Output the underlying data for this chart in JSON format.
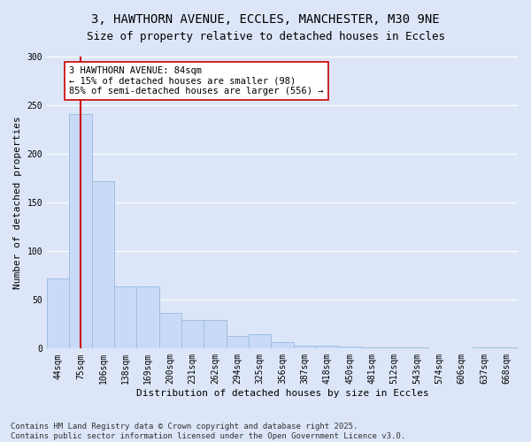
{
  "title_line1": "3, HAWTHORN AVENUE, ECCLES, MANCHESTER, M30 9NE",
  "title_line2": "Size of property relative to detached houses in Eccles",
  "xlabel": "Distribution of detached houses by size in Eccles",
  "ylabel": "Number of detached properties",
  "categories": [
    "44sqm",
    "75sqm",
    "106sqm",
    "138sqm",
    "169sqm",
    "200sqm",
    "231sqm",
    "262sqm",
    "294sqm",
    "325sqm",
    "356sqm",
    "387sqm",
    "418sqm",
    "450sqm",
    "481sqm",
    "512sqm",
    "543sqm",
    "574sqm",
    "606sqm",
    "637sqm",
    "668sqm"
  ],
  "values": [
    72,
    241,
    172,
    64,
    64,
    37,
    29,
    29,
    13,
    15,
    7,
    3,
    3,
    2,
    1,
    1,
    1,
    0,
    0,
    1,
    1
  ],
  "bar_color": "#c9daf8",
  "bar_edge_color": "#a0bfe0",
  "background_color": "#dce6f8",
  "fig_background_color": "#dce6f8",
  "grid_color": "#ffffff",
  "property_label": "3 HAWTHORN AVENUE: 84sqm",
  "annotation_line1": "← 15% of detached houses are smaller (98)",
  "annotation_line2": "85% of semi-detached houses are larger (556) →",
  "vline_x_index": 1,
  "vline_color": "#cc0000",
  "annotation_border_color": "#cc0000",
  "ylim": [
    0,
    300
  ],
  "yticks": [
    0,
    50,
    100,
    150,
    200,
    250,
    300
  ],
  "footer_line1": "Contains HM Land Registry data © Crown copyright and database right 2025.",
  "footer_line2": "Contains public sector information licensed under the Open Government Licence v3.0.",
  "title_fontsize": 10,
  "subtitle_fontsize": 9,
  "axis_label_fontsize": 8,
  "tick_fontsize": 7,
  "annotation_fontsize": 7.5,
  "footer_fontsize": 6.5
}
